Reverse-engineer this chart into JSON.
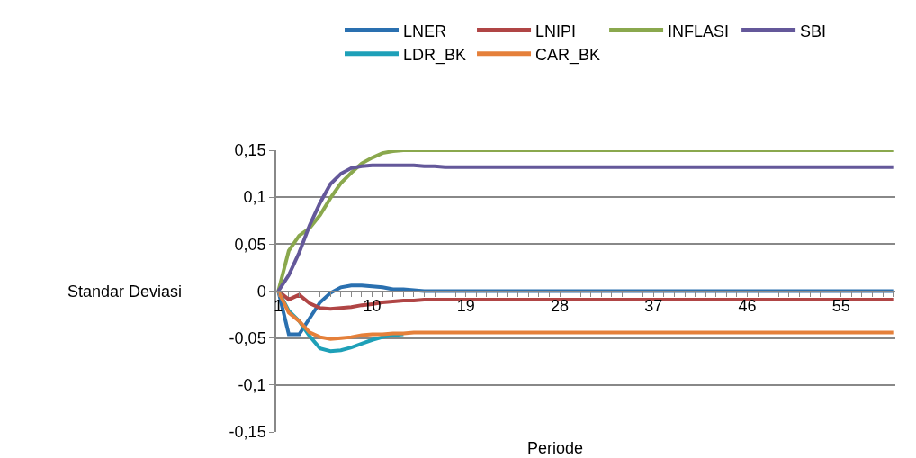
{
  "chart_data": {
    "type": "line",
    "categories": [
      "1",
      null,
      null,
      null,
      null,
      null,
      null,
      null,
      null,
      "10",
      null,
      null,
      null,
      null,
      null,
      null,
      null,
      null,
      "19",
      null,
      null,
      null,
      null,
      null,
      null,
      null,
      null,
      "28",
      null,
      null,
      null,
      null,
      null,
      null,
      null,
      null,
      "37",
      null,
      null,
      null,
      null,
      null,
      null,
      null,
      null,
      "46",
      null,
      null,
      null,
      null,
      null,
      null,
      null,
      null,
      "55",
      null,
      null,
      null,
      null,
      null
    ],
    "series": [
      {
        "name": "LNER",
        "color": "#2a70b0",
        "values": [
          0,
          -0.046,
          -0.046,
          -0.029,
          -0.012,
          -0.002,
          0.004,
          0.006,
          0.006,
          0.005,
          0.004,
          0.002,
          0.002,
          0.001,
          0,
          0,
          0,
          0,
          0,
          0,
          0,
          0,
          0,
          0,
          0,
          0,
          0,
          0,
          0,
          0,
          0,
          0,
          0,
          0,
          0,
          0,
          0,
          0,
          0,
          0,
          0,
          0,
          0,
          0,
          0,
          0,
          0,
          0,
          0,
          0,
          0,
          0,
          0,
          0,
          0,
          0,
          0,
          0,
          0,
          0
        ]
      },
      {
        "name": "LNIPI",
        "color": "#b04545",
        "values": [
          0,
          -0.009,
          -0.004,
          -0.013,
          -0.018,
          -0.019,
          -0.018,
          -0.017,
          -0.015,
          -0.014,
          -0.012,
          -0.011,
          -0.01,
          -0.01,
          -0.009,
          -0.009,
          -0.009,
          -0.009,
          -0.009,
          -0.009,
          -0.009,
          -0.009,
          -0.009,
          -0.009,
          -0.009,
          -0.009,
          -0.009,
          -0.009,
          -0.009,
          -0.009,
          -0.009,
          -0.009,
          -0.009,
          -0.009,
          -0.009,
          -0.009,
          -0.009,
          -0.009,
          -0.009,
          -0.009,
          -0.009,
          -0.009,
          -0.009,
          -0.009,
          -0.009,
          -0.009,
          -0.009,
          -0.009,
          -0.009,
          -0.009,
          -0.009,
          -0.009,
          -0.009,
          -0.009,
          -0.009,
          -0.009,
          -0.009,
          -0.009,
          -0.009,
          -0.009
        ]
      },
      {
        "name": "INFLASI",
        "color": "#8aa84d",
        "values": [
          0,
          0.043,
          0.059,
          0.067,
          0.081,
          0.099,
          0.115,
          0.126,
          0.136,
          0.142,
          0.147,
          0.149,
          0.15,
          0.15,
          0.15,
          0.15,
          0.15,
          0.15,
          0.15,
          0.15,
          0.15,
          0.15,
          0.15,
          0.15,
          0.15,
          0.15,
          0.15,
          0.15,
          0.15,
          0.15,
          0.15,
          0.15,
          0.15,
          0.15,
          0.15,
          0.15,
          0.15,
          0.15,
          0.15,
          0.15,
          0.15,
          0.15,
          0.15,
          0.15,
          0.15,
          0.15,
          0.15,
          0.15,
          0.15,
          0.15,
          0.15,
          0.15,
          0.15,
          0.15,
          0.15,
          0.15,
          0.15,
          0.15,
          0.15,
          0.15
        ]
      },
      {
        "name": "SBI",
        "color": "#64589a",
        "values": [
          0,
          0.017,
          0.041,
          0.07,
          0.094,
          0.114,
          0.125,
          0.131,
          0.133,
          0.134,
          0.134,
          0.134,
          0.134,
          0.134,
          0.133,
          0.133,
          0.132,
          0.132,
          0.132,
          0.132,
          0.132,
          0.132,
          0.132,
          0.132,
          0.132,
          0.132,
          0.132,
          0.132,
          0.132,
          0.132,
          0.132,
          0.132,
          0.132,
          0.132,
          0.132,
          0.132,
          0.132,
          0.132,
          0.132,
          0.132,
          0.132,
          0.132,
          0.132,
          0.132,
          0.132,
          0.132,
          0.132,
          0.132,
          0.132,
          0.132,
          0.132,
          0.132,
          0.132,
          0.132,
          0.132,
          0.132,
          0.132,
          0.132,
          0.132,
          0.132
        ]
      },
      {
        "name": "LDR_BK",
        "color": "#1ea0b8",
        "values": [
          0,
          -0.021,
          -0.032,
          -0.048,
          -0.061,
          -0.064,
          -0.063,
          -0.06,
          -0.056,
          -0.052,
          -0.049,
          -0.047,
          -0.046,
          null,
          null,
          null,
          null,
          null,
          null,
          null,
          null,
          null,
          null,
          null,
          null,
          null,
          null,
          null,
          null,
          null,
          null,
          null,
          null,
          null,
          null,
          null,
          null,
          null,
          null,
          null,
          null,
          null,
          null,
          null,
          null,
          null,
          null,
          null,
          null,
          null,
          null,
          null,
          null,
          null,
          null,
          null,
          null,
          null,
          null,
          null
        ]
      },
      {
        "name": "CAR_BK",
        "color": "#e5803a",
        "values": [
          0,
          -0.023,
          -0.032,
          -0.044,
          -0.049,
          -0.051,
          -0.05,
          -0.049,
          -0.047,
          -0.046,
          -0.046,
          -0.045,
          -0.045,
          -0.044,
          -0.044,
          -0.044,
          -0.044,
          -0.044,
          -0.044,
          -0.044,
          -0.044,
          -0.044,
          -0.044,
          -0.044,
          -0.044,
          -0.044,
          -0.044,
          -0.044,
          -0.044,
          -0.044,
          -0.044,
          -0.044,
          -0.044,
          -0.044,
          -0.044,
          -0.044,
          -0.044,
          -0.044,
          -0.044,
          -0.044,
          -0.044,
          -0.044,
          -0.044,
          -0.044,
          -0.044,
          -0.044,
          -0.044,
          -0.044,
          -0.044,
          -0.044,
          -0.044,
          -0.044,
          -0.044,
          -0.044,
          -0.044,
          -0.044,
          -0.044,
          -0.044,
          -0.044,
          -0.044
        ]
      }
    ],
    "xlabel": "Periode",
    "ylabel": "Standar Deviasi",
    "ylim": [
      -0.15,
      0.15
    ],
    "yticks": [
      {
        "value": -0.15,
        "label": "-0,15"
      },
      {
        "value": -0.1,
        "label": "-0,1"
      },
      {
        "value": -0.05,
        "label": "-0,05"
      },
      {
        "value": 0,
        "label": "0"
      },
      {
        "value": 0.05,
        "label": "0,05"
      },
      {
        "value": 0.1,
        "label": "0,1"
      },
      {
        "value": 0.15,
        "label": "0,15"
      }
    ],
    "grid": "y",
    "legend": "top",
    "marker": "none",
    "line_style": "solid"
  }
}
